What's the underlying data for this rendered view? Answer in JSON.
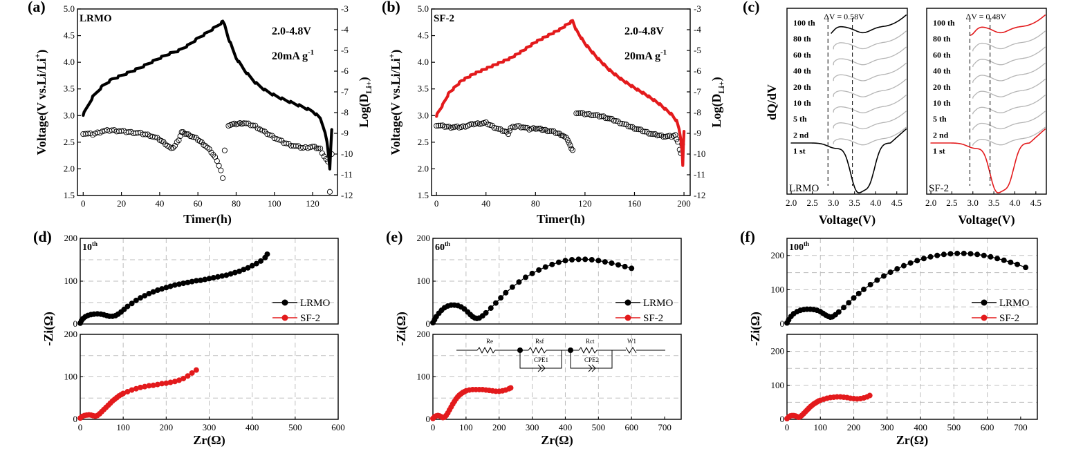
{
  "chart_data": [
    {
      "id": "a",
      "type": "line",
      "panel_label": "(a)",
      "title": "LRMO",
      "annotations": [
        "2.0-4.8V",
        "20mA g",
        "-1"
      ],
      "xlabel": "Timer(h)",
      "ylabel": "Voltage(V vs.Li/Li",
      "ylabel_sup": "+",
      "ylabel_close": ")",
      "y2label": "Log(D",
      "y2label_sub": "Li+",
      "y2label_close": ")",
      "xlim": [
        -3,
        133
      ],
      "ylim": [
        1.5,
        5.0
      ],
      "y2lim": [
        -12,
        -3
      ],
      "xticks": [
        0,
        20,
        40,
        60,
        80,
        100,
        120
      ],
      "yticks": [
        1.5,
        2.0,
        2.5,
        3.0,
        3.5,
        4.0,
        4.5,
        5.0
      ],
      "y2ticks": [
        -12,
        -11,
        -10,
        -9,
        -8,
        -7,
        -6,
        -5,
        -4,
        -3
      ],
      "voltage": {
        "color": "#000000",
        "x": [
          0,
          2,
          5,
          10,
          15,
          20,
          30,
          40,
          45,
          50,
          55,
          60,
          65,
          70,
          73,
          74,
          76,
          80,
          85,
          90,
          95,
          100,
          105,
          110,
          115,
          120,
          124,
          126,
          127.5,
          128.5,
          129,
          129.5,
          130
        ],
        "y": [
          3.02,
          3.15,
          3.35,
          3.55,
          3.68,
          3.75,
          3.9,
          4.08,
          4.16,
          4.22,
          4.32,
          4.45,
          4.56,
          4.68,
          4.76,
          4.7,
          4.45,
          4.08,
          3.82,
          3.62,
          3.48,
          3.38,
          3.3,
          3.23,
          3.16,
          3.08,
          2.95,
          2.75,
          2.5,
          2.2,
          2.0,
          2.4,
          2.75
        ]
      },
      "diffusion": {
        "marker": "open-circle",
        "color": "#000000",
        "segments": [
          {
            "x": [
              0,
              5,
              10,
              15,
              20,
              25,
              30,
              35,
              40,
              43,
              46,
              48,
              50,
              51.5,
              53,
              56,
              60,
              64,
              67,
              70,
              72,
              73,
              74
            ],
            "y": [
              -9.0,
              -9.05,
              -8.9,
              -8.85,
              -8.9,
              -8.95,
              -9.0,
              -9.1,
              -9.3,
              -9.5,
              -9.75,
              -9.6,
              -9.3,
              -8.95,
              -9.0,
              -9.1,
              -9.3,
              -9.6,
              -9.9,
              -10.3,
              -10.8,
              -11.2,
              -9.8
            ]
          },
          {
            "x": [
              76,
              80,
              84,
              90,
              95,
              100,
              105,
              110,
              115,
              120,
              124,
              126,
              128,
              129,
              130
            ],
            "y": [
              -8.6,
              -8.55,
              -8.5,
              -8.65,
              -8.95,
              -9.2,
              -9.45,
              -9.6,
              -9.7,
              -9.65,
              -9.75,
              -10.1,
              -10.4,
              -11.8,
              -10.0
            ]
          }
        ]
      }
    },
    {
      "id": "b",
      "type": "line",
      "panel_label": "(b)",
      "title": "SF-2",
      "annotations": [
        "2.0-4.8V",
        "20mA g",
        "-1"
      ],
      "xlabel": "Timer(h)",
      "ylabel": "Voltage(V vs.Li/Li",
      "ylabel_sup": "+",
      "ylabel_close": ")",
      "y2label": "Log(D",
      "y2label_sub": "Li+",
      "y2label_close": ")",
      "xlim": [
        -4,
        205
      ],
      "ylim": [
        1.5,
        5.0
      ],
      "y2lim": [
        -12,
        -3
      ],
      "xticks": [
        0,
        40,
        80,
        120,
        160,
        200
      ],
      "yticks": [
        1.5,
        2.0,
        2.5,
        3.0,
        3.5,
        4.0,
        4.5,
        5.0
      ],
      "y2ticks": [
        -12,
        -11,
        -10,
        -9,
        -8,
        -7,
        -6,
        -5,
        -4,
        -3
      ],
      "voltage": {
        "color": "#e31a1c",
        "x": [
          0,
          5,
          10,
          20,
          30,
          40,
          50,
          60,
          70,
          80,
          90,
          100,
          105,
          110,
          113,
          120,
          130,
          140,
          150,
          160,
          170,
          180,
          185,
          190,
          194,
          196,
          197.5,
          198.5,
          199,
          199.5,
          200
        ],
        "y": [
          3.0,
          3.2,
          3.42,
          3.65,
          3.78,
          3.88,
          3.98,
          4.08,
          4.22,
          4.38,
          4.5,
          4.62,
          4.7,
          4.78,
          4.6,
          4.35,
          4.08,
          3.85,
          3.67,
          3.52,
          3.38,
          3.22,
          3.12,
          3.02,
          2.9,
          2.75,
          2.55,
          2.3,
          2.05,
          2.45,
          2.7
        ]
      },
      "diffusion": {
        "marker": "open-circle",
        "color": "#000000",
        "segments": [
          {
            "x": [
              0,
              10,
              20,
              30,
              40,
              50,
              55,
              58,
              60,
              65,
              70,
              75,
              80,
              84,
              88,
              93,
              98,
              102,
              106,
              108,
              110
            ],
            "y": [
              -8.6,
              -8.7,
              -8.7,
              -8.55,
              -8.5,
              -8.8,
              -8.9,
              -9.0,
              -8.75,
              -8.65,
              -8.7,
              -8.8,
              -8.75,
              -8.8,
              -8.85,
              -8.9,
              -9.0,
              -9.1,
              -9.3,
              -9.6,
              -9.8
            ]
          },
          {
            "x": [
              113,
              118,
              125,
              135,
              145,
              155,
              165,
              175,
              185,
              190,
              193,
              195,
              196.5,
              197.5,
              198.5
            ],
            "y": [
              -8.0,
              -8.05,
              -8.1,
              -8.2,
              -8.4,
              -8.65,
              -8.85,
              -9.05,
              -9.15,
              -9.15,
              -9.1,
              -9.4,
              -9.8,
              -10.0,
              -9.5
            ]
          }
        ]
      }
    },
    {
      "id": "c",
      "type": "line",
      "panel_label": "(c)",
      "ylabel": "dQ/dV",
      "xlabel": "Voltage(V)",
      "xticks": [
        2.0,
        2.5,
        3.0,
        3.5,
        4.0,
        4.5
      ],
      "xlim": [
        1.9,
        4.75
      ],
      "subplots": [
        {
          "label": "LRMO",
          "delta_v": "ΔV = 0.58V",
          "dashed_x": [
            2.87,
            3.45
          ],
          "highlight_color": "#000000",
          "cycles": [
            "100 th",
            "80 th",
            "60 th",
            "40 th",
            "20 th",
            "10 th",
            "5 th",
            "2 nd",
            "1 st"
          ]
        },
        {
          "label": "SF-2",
          "delta_v": "ΔV = 0.48V",
          "dashed_x": [
            2.93,
            3.41
          ],
          "highlight_color": "#e31a1c",
          "cycles": [
            "100 th",
            "80 th",
            "60 th",
            "40 th",
            "20 th",
            "10 th",
            "5 th",
            "2 nd",
            "1 st"
          ]
        }
      ]
    },
    {
      "id": "d",
      "type": "scatter",
      "panel_label": "(d)",
      "title": "10",
      "title_sup": "th",
      "xlabel": "Zr(Ω)",
      "ylabel": "-Zi(Ω)",
      "xlim": [
        0,
        600
      ],
      "xticks": [
        0,
        100,
        200,
        300,
        400,
        500,
        600
      ],
      "ylim": [
        0,
        200
      ],
      "yticks": [
        0,
        100,
        200
      ],
      "series": [
        {
          "name": "LRMO",
          "color": "#000000",
          "x": [
            0,
            3,
            7,
            12,
            18,
            25,
            32,
            40,
            48,
            55,
            62,
            68,
            75,
            82,
            88,
            95,
            102,
            110,
            120,
            130,
            140,
            150,
            160,
            170,
            180,
            190,
            200,
            210,
            220,
            230,
            240,
            250,
            260,
            270,
            280,
            290,
            300,
            310,
            320,
            330,
            340,
            350,
            360,
            370,
            380,
            390,
            400,
            410,
            420,
            430,
            435
          ],
          "y": [
            2,
            8,
            13,
            17,
            20,
            22,
            23,
            23.5,
            23,
            21.5,
            19.5,
            18,
            18,
            19.5,
            23,
            28,
            34,
            41,
            48,
            55,
            61,
            66,
            71,
            75,
            79,
            82,
            85,
            88,
            91,
            93,
            95,
            97,
            99,
            101,
            102,
            104,
            106,
            108,
            110,
            112,
            114,
            117,
            120,
            123,
            127,
            131,
            136,
            141,
            147,
            155,
            163
          ]
        },
        {
          "name": "SF-2",
          "color": "#e31a1c",
          "x": [
            0,
            5,
            10,
            15,
            20,
            25,
            30,
            35,
            40,
            45,
            50,
            55,
            60,
            65,
            70,
            75,
            80,
            85,
            90,
            95,
            100,
            110,
            120,
            130,
            140,
            150,
            160,
            170,
            180,
            190,
            200,
            210,
            220,
            230,
            240,
            250,
            260,
            270
          ],
          "y": [
            3,
            7,
            9,
            10,
            10.5,
            10,
            8.5,
            7.5,
            9,
            13,
            18,
            23,
            28,
            33,
            38,
            43,
            47,
            51,
            55,
            58,
            61,
            65,
            69,
            72,
            75,
            77,
            79,
            80,
            82,
            84,
            85,
            87,
            89,
            92,
            96,
            102,
            109,
            116
          ]
        }
      ]
    },
    {
      "id": "e",
      "type": "scatter",
      "panel_label": "(e)",
      "title": "60",
      "title_sup": "th",
      "xlabel": "Zr(Ω)",
      "ylabel": "-Zi(Ω)",
      "xlim": [
        0,
        750
      ],
      "xticks": [
        0,
        100,
        200,
        300,
        400,
        500,
        600,
        700
      ],
      "ylim": [
        0,
        200
      ],
      "yticks": [
        0,
        100,
        200
      ],
      "circuit_labels": [
        "Re",
        "Rsf",
        "Rct",
        "W1",
        "CPE1",
        "CPE2"
      ],
      "series": [
        {
          "name": "LRMO",
          "color": "#000000",
          "x": [
            0,
            5,
            10,
            18,
            26,
            35,
            45,
            55,
            65,
            75,
            85,
            95,
            105,
            113,
            120,
            127,
            133,
            140,
            150,
            160,
            175,
            190,
            205,
            220,
            240,
            260,
            280,
            300,
            320,
            340,
            360,
            380,
            400,
            420,
            440,
            460,
            480,
            500,
            520,
            540,
            560,
            580,
            600
          ],
          "y": [
            3,
            10,
            17,
            25,
            32,
            38,
            42,
            44,
            44,
            43,
            40,
            35,
            28,
            22,
            17,
            14,
            13,
            14,
            19,
            26,
            37,
            49,
            61,
            73,
            86,
            98,
            109,
            118,
            126,
            133,
            139,
            144,
            148,
            150,
            151,
            151,
            150,
            148,
            145,
            142,
            138,
            134,
            130
          ]
        },
        {
          "name": "SF-2",
          "color": "#e31a1c",
          "x": [
            0,
            5,
            10,
            15,
            20,
            25,
            30,
            35,
            40,
            45,
            50,
            55,
            60,
            65,
            70,
            75,
            80,
            85,
            90,
            95,
            100,
            110,
            120,
            130,
            140,
            150,
            160,
            170,
            180,
            190,
            200,
            210,
            220,
            230,
            235
          ],
          "y": [
            2,
            6,
            8,
            9,
            8,
            6,
            4,
            5,
            9,
            15,
            22,
            29,
            36,
            42,
            48,
            53,
            57,
            60,
            63,
            65,
            67,
            69,
            70,
            70,
            70,
            70,
            69,
            68,
            67,
            66,
            66,
            67,
            69,
            72,
            74
          ]
        }
      ]
    },
    {
      "id": "f",
      "type": "scatter",
      "panel_label": "(f)",
      "title": "100",
      "title_sup": "th",
      "xlabel": "Zr(Ω)",
      "ylabel": "-Zi(Ω)",
      "xlim": [
        0,
        750
      ],
      "xticks": [
        0,
        100,
        200,
        300,
        400,
        500,
        600,
        700
      ],
      "ylim": [
        0,
        250
      ],
      "yticks": [
        0,
        100,
        200
      ],
      "series": [
        {
          "name": "LRMO",
          "color": "#000000",
          "x": [
            0,
            5,
            12,
            20,
            30,
            40,
            50,
            60,
            70,
            80,
            90,
            100,
            108,
            116,
            124,
            130,
            136,
            145,
            155,
            170,
            185,
            200,
            215,
            230,
            250,
            270,
            290,
            310,
            330,
            350,
            370,
            390,
            410,
            430,
            450,
            470,
            490,
            510,
            530,
            550,
            570,
            590,
            610,
            630,
            650,
            670,
            690,
            715
          ],
          "y": [
            3,
            12,
            22,
            30,
            36,
            40,
            42,
            43,
            43,
            42,
            40,
            36,
            31,
            26,
            22,
            20,
            21,
            27,
            35,
            48,
            62,
            76,
            89,
            101,
            115,
            128,
            140,
            151,
            161,
            170,
            178,
            185,
            191,
            196,
            200,
            203,
            205,
            206,
            206,
            205,
            203,
            200,
            196,
            191,
            186,
            180,
            174,
            165
          ]
        },
        {
          "name": "SF-2",
          "color": "#e31a1c",
          "x": [
            0,
            5,
            10,
            15,
            20,
            25,
            30,
            35,
            40,
            45,
            50,
            55,
            60,
            65,
            70,
            75,
            80,
            85,
            90,
            95,
            100,
            110,
            120,
            130,
            140,
            150,
            160,
            170,
            180,
            190,
            200,
            210,
            220,
            230,
            240,
            248
          ],
          "y": [
            2,
            7,
            10,
            11,
            11,
            10,
            8,
            6,
            8,
            12,
            17,
            22,
            27,
            32,
            37,
            41,
            45,
            48,
            51,
            54,
            56,
            59,
            62,
            64,
            65,
            66,
            66,
            65,
            64,
            62,
            61,
            60,
            61,
            63,
            66,
            70
          ]
        }
      ]
    }
  ]
}
